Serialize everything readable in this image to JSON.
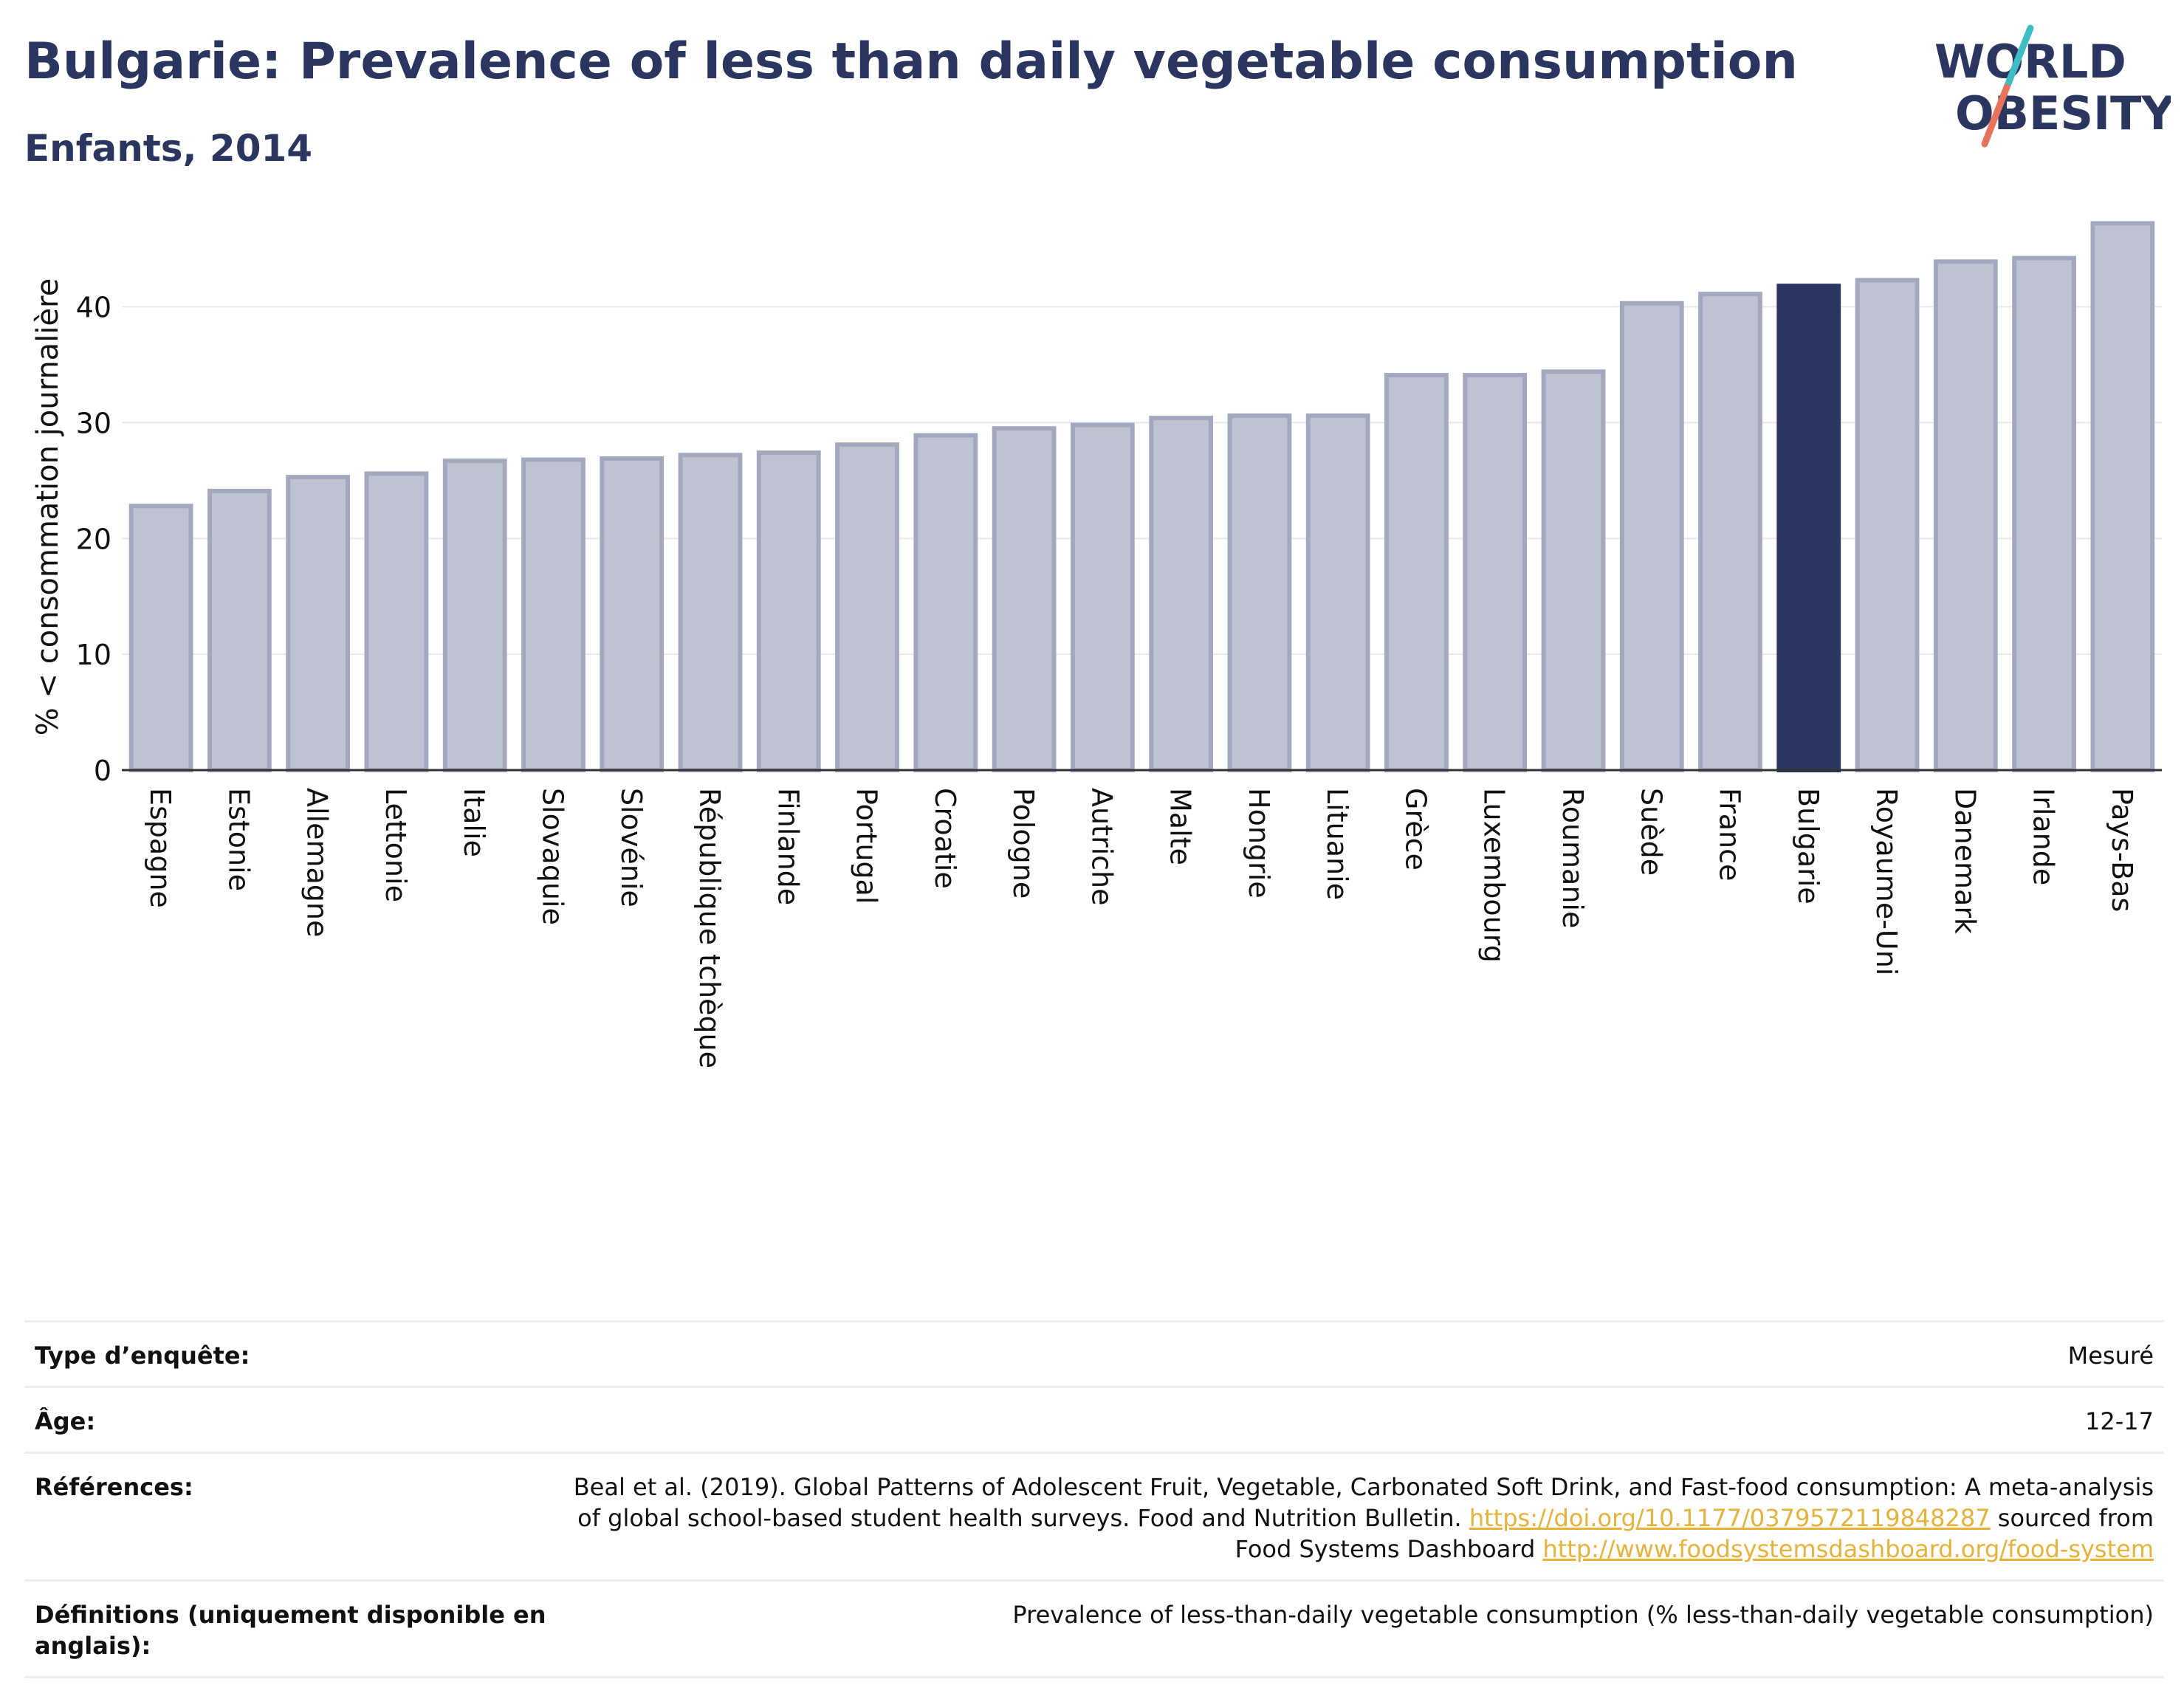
{
  "header": {
    "title": "Bulgarie: Prevalence of less than daily vegetable consumption",
    "subtitle": "Enfants, 2014"
  },
  "logo": {
    "line1": "WORLD",
    "line2": "OBESITY",
    "colors": {
      "text": "#2a3560",
      "slash_top": "#3dbdc4",
      "slash_bottom": "#e8735c"
    }
  },
  "chart_data": {
    "type": "bar",
    "ylabel": "% < consommation journalière",
    "xlabel": "",
    "ylim": [
      0,
      48
    ],
    "yticks": [
      0,
      10,
      20,
      30,
      40
    ],
    "grid": true,
    "highlight": "Bulgarie",
    "colors": {
      "bar": "#bfc2d0",
      "bar_edge": "#a3a8bf",
      "highlight": "#2a3560",
      "grid": "#e8e8ee",
      "axis": "#333333"
    },
    "categories": [
      "Espagne",
      "Estonie",
      "Allemagne",
      "Lettonie",
      "Italie",
      "Slovaquie",
      "Slovénie",
      "République tchèque",
      "Finlande",
      "Portugal",
      "Croatie",
      "Pologne",
      "Autriche",
      "Malte",
      "Hongrie",
      "Lituanie",
      "Grèce",
      "Luxembourg",
      "Roumanie",
      "Suède",
      "France",
      "Bulgarie",
      "Royaume-Uni",
      "Danemark",
      "Irlande",
      "Pays-Bas"
    ],
    "values": [
      22.8,
      24.1,
      25.3,
      25.6,
      26.7,
      26.8,
      26.9,
      27.2,
      27.4,
      28.1,
      28.9,
      29.5,
      29.8,
      30.4,
      30.6,
      30.6,
      34.1,
      34.1,
      34.4,
      40.3,
      41.1,
      41.8,
      42.3,
      43.9,
      44.2,
      47.2
    ]
  },
  "meta": {
    "survey_label": "Type d’enquête:",
    "survey_value": "Mesuré",
    "age_label": "Âge:",
    "age_value": "12-17",
    "refs_label": "Références:",
    "refs_text1": "Beal et al. (2019). Global Patterns of Adolescent Fruit, Vegetable, Carbonated Soft Drink, and Fast-food consumption: A meta-analysis of global school-based student health surveys. Food and Nutrition Bulletin.",
    "refs_link1": "https://doi.org/10.1177/0379572119848287",
    "refs_text2": "sourced from Food Systems Dashboard",
    "refs_link2": "http://www.foodsystemsdashboard.org/food-system",
    "defs_label": "Définitions (uniquement disponible en anglais):",
    "defs_value": "Prevalence of less-than-daily vegetable consumption (% less-than-daily vegetable consumption)"
  }
}
